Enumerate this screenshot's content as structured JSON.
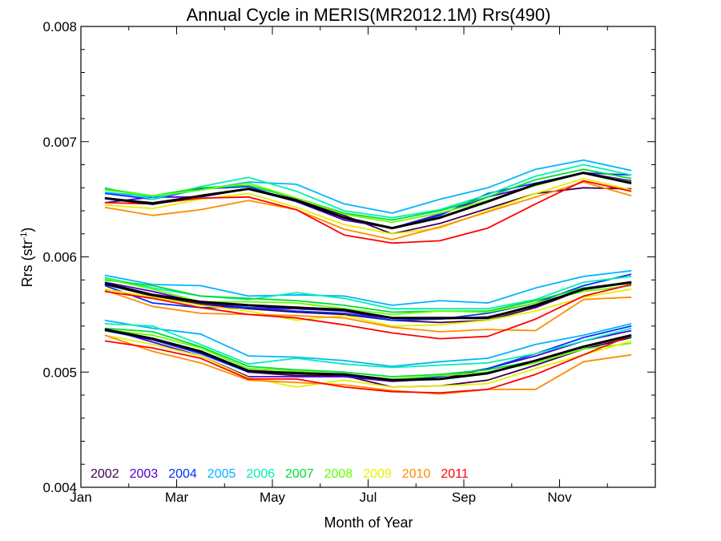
{
  "chart_data": {
    "type": "line",
    "title": "Annual Cycle in MERIS(MR2012.1M) Rrs(490)",
    "xlabel": "Month of Year",
    "ylabel": "Rrs (str",
    "ylabel_superscript": "-1",
    "ylabel_suffix": ")",
    "xlim": [
      0,
      12
    ],
    "ylim": [
      0.004,
      0.008
    ],
    "xticks": [
      {
        "value": 0,
        "label": "Jan"
      },
      {
        "value": 2,
        "label": "Mar"
      },
      {
        "value": 4,
        "label": "May"
      },
      {
        "value": 6,
        "label": "Jul"
      },
      {
        "value": 8,
        "label": "Sep"
      },
      {
        "value": 10,
        "label": "Nov"
      }
    ],
    "yticks": [
      {
        "value": 0.004,
        "label": "0.004"
      },
      {
        "value": 0.005,
        "label": "0.005"
      },
      {
        "value": 0.006,
        "label": "0.006"
      },
      {
        "value": 0.007,
        "label": "0.007"
      },
      {
        "value": 0.008,
        "label": "0.008"
      }
    ],
    "x": [
      0.5,
      1.5,
      2.5,
      3.5,
      4.5,
      5.5,
      6.5,
      7.5,
      8.5,
      9.5,
      10.5,
      11.5
    ],
    "series": [
      {
        "name": "2002",
        "color": "#3c0050",
        "groups": [
          [
            0.00651,
            0.00647,
            0.00653,
            0.00659,
            0.0065,
            0.00636,
            0.0062,
            0.00629,
            0.00642,
            0.00655,
            0.0066,
            0.00659
          ],
          [
            0.00576,
            0.00566,
            0.00559,
            0.00555,
            0.00552,
            0.0055,
            0.00545,
            0.00543,
            0.00545,
            0.00556,
            0.00572,
            0.00578
          ],
          [
            0.00537,
            0.00528,
            0.00517,
            0.005,
            0.00497,
            0.00497,
            0.00487,
            0.00488,
            0.00493,
            0.00506,
            0.0052,
            0.0053
          ]
        ]
      },
      {
        "name": "2003",
        "color": "#5000c8",
        "groups": [
          [
            0.00647,
            0.00652,
            0.00652,
            0.00659,
            0.00648,
            0.00632,
            0.00625,
            0.00637,
            0.00652,
            0.00662,
            0.00673,
            0.00666
          ],
          [
            0.00578,
            0.0057,
            0.0056,
            0.00556,
            0.00555,
            0.00553,
            0.00545,
            0.00546,
            0.00548,
            0.00557,
            0.00573,
            0.00578
          ],
          [
            0.00538,
            0.00526,
            0.00514,
            0.00496,
            0.00496,
            0.00496,
            0.00492,
            0.00494,
            0.00503,
            0.00514,
            0.00527,
            0.00536
          ]
        ]
      },
      {
        "name": "2004",
        "color": "#0032ff",
        "groups": [
          [
            0.00655,
            0.0065,
            0.00659,
            0.00661,
            0.00648,
            0.00634,
            0.00625,
            0.00636,
            0.00655,
            0.00664,
            0.00673,
            0.00671
          ],
          [
            0.00575,
            0.0056,
            0.00556,
            0.00556,
            0.00553,
            0.00551,
            0.00545,
            0.00546,
            0.00551,
            0.0056,
            0.00575,
            0.00585
          ],
          [
            0.00536,
            0.00528,
            0.00516,
            0.005,
            0.005,
            0.00497,
            0.00493,
            0.00496,
            0.00503,
            0.00516,
            0.0053,
            0.0054
          ]
        ]
      },
      {
        "name": "2005",
        "color": "#00b4ff",
        "groups": [
          [
            0.00656,
            0.00652,
            0.00658,
            0.00665,
            0.00663,
            0.00646,
            0.00638,
            0.0065,
            0.0066,
            0.00676,
            0.00684,
            0.00675
          ],
          [
            0.00584,
            0.00576,
            0.00575,
            0.00566,
            0.00567,
            0.00566,
            0.00558,
            0.00562,
            0.0056,
            0.00573,
            0.00583,
            0.00588
          ],
          [
            0.00545,
            0.00538,
            0.00533,
            0.00514,
            0.00513,
            0.0051,
            0.00505,
            0.00509,
            0.00512,
            0.00524,
            0.00532,
            0.00542
          ]
        ]
      },
      {
        "name": "2006",
        "color": "#00f0b4",
        "groups": [
          [
            0.0066,
            0.0065,
            0.00661,
            0.00669,
            0.00657,
            0.0064,
            0.00634,
            0.00641,
            0.00654,
            0.0067,
            0.0068,
            0.00671
          ],
          [
            0.00582,
            0.00573,
            0.00566,
            0.00563,
            0.00569,
            0.00564,
            0.00555,
            0.00555,
            0.00555,
            0.00563,
            0.00578,
            0.00583
          ],
          [
            0.00542,
            0.0054,
            0.00524,
            0.00507,
            0.00512,
            0.00507,
            0.00504,
            0.00506,
            0.00508,
            0.00516,
            0.00527,
            0.00538
          ]
        ]
      },
      {
        "name": "2007",
        "color": "#00dc32",
        "groups": [
          [
            0.00659,
            0.00653,
            0.0066,
            0.00662,
            0.00651,
            0.00638,
            0.00632,
            0.0064,
            0.00652,
            0.00667,
            0.00676,
            0.00668
          ],
          [
            0.0058,
            0.00575,
            0.00566,
            0.00564,
            0.00562,
            0.00558,
            0.00552,
            0.00553,
            0.00553,
            0.00562,
            0.00573,
            0.00577
          ],
          [
            0.00538,
            0.00535,
            0.00522,
            0.00505,
            0.00502,
            0.005,
            0.00496,
            0.00498,
            0.00502,
            0.0051,
            0.00522,
            0.00531
          ]
        ]
      },
      {
        "name": "2008",
        "color": "#64ff00",
        "groups": [
          [
            0.00658,
            0.00653,
            0.00658,
            0.00664,
            0.00651,
            0.00637,
            0.0063,
            0.00638,
            0.00649,
            0.00662,
            0.00673,
            0.00665
          ],
          [
            0.00581,
            0.00572,
            0.00561,
            0.00561,
            0.0056,
            0.00555,
            0.0055,
            0.00553,
            0.00552,
            0.0056,
            0.0057,
            0.00575
          ],
          [
            0.00537,
            0.00532,
            0.00521,
            0.00503,
            0.00501,
            0.00498,
            0.00494,
            0.00497,
            0.005,
            0.00508,
            0.0052,
            0.00525
          ]
        ]
      },
      {
        "name": "2009",
        "color": "#e6f000",
        "groups": [
          [
            0.00645,
            0.00642,
            0.0065,
            0.00655,
            0.00643,
            0.00628,
            0.0062,
            0.00625,
            0.0064,
            0.00655,
            0.00668,
            0.00658
          ],
          [
            0.00572,
            0.00565,
            0.00558,
            0.00553,
            0.00545,
            0.00549,
            0.0054,
            0.00541,
            0.00545,
            0.00553,
            0.00565,
            0.00572
          ],
          [
            0.00532,
            0.00524,
            0.00514,
            0.00495,
            0.00487,
            0.00493,
            0.00487,
            0.00488,
            0.0049,
            0.00503,
            0.00515,
            0.00527
          ]
        ]
      },
      {
        "name": "2010",
        "color": "#ff8c00",
        "groups": [
          [
            0.00643,
            0.00636,
            0.00641,
            0.00649,
            0.00641,
            0.00624,
            0.00615,
            0.00626,
            0.00639,
            0.00652,
            0.00665,
            0.00653
          ],
          [
            0.00571,
            0.00557,
            0.00551,
            0.0055,
            0.00549,
            0.00547,
            0.00539,
            0.00535,
            0.00537,
            0.00536,
            0.00563,
            0.00565
          ],
          [
            0.00532,
            0.00518,
            0.00508,
            0.00493,
            0.00491,
            0.00489,
            0.00484,
            0.00481,
            0.00485,
            0.00485,
            0.00509,
            0.00515
          ]
        ]
      },
      {
        "name": "2011",
        "color": "#ff0000",
        "groups": [
          [
            0.00647,
            0.00646,
            0.00651,
            0.00652,
            0.00641,
            0.00619,
            0.00612,
            0.00614,
            0.00625,
            0.00646,
            0.00666,
            0.00657
          ],
          [
            0.0057,
            0.00564,
            0.00556,
            0.0055,
            0.00547,
            0.00541,
            0.00534,
            0.00529,
            0.00531,
            0.00546,
            0.00566,
            0.00576
          ],
          [
            0.00527,
            0.00521,
            0.00512,
            0.00494,
            0.00494,
            0.00487,
            0.00483,
            0.00482,
            0.00485,
            0.00498,
            0.00515,
            0.00532
          ]
        ]
      },
      {
        "name": "",
        "color": "#000000",
        "mean": true,
        "groups": [
          [
            0.00651,
            0.00646,
            0.00653,
            0.00659,
            0.00649,
            0.00634,
            0.00625,
            0.00634,
            0.00648,
            0.00663,
            0.00673,
            0.00664
          ],
          [
            0.00577,
            0.00567,
            0.00561,
            0.00558,
            0.00556,
            0.00554,
            0.00547,
            0.00547,
            0.00547,
            0.00558,
            0.00572,
            0.00578
          ],
          [
            0.00537,
            0.00529,
            0.00518,
            0.00501,
            0.00499,
            0.00498,
            0.00493,
            0.00494,
            0.00499,
            0.0051,
            0.00522,
            0.00532
          ]
        ]
      }
    ]
  }
}
